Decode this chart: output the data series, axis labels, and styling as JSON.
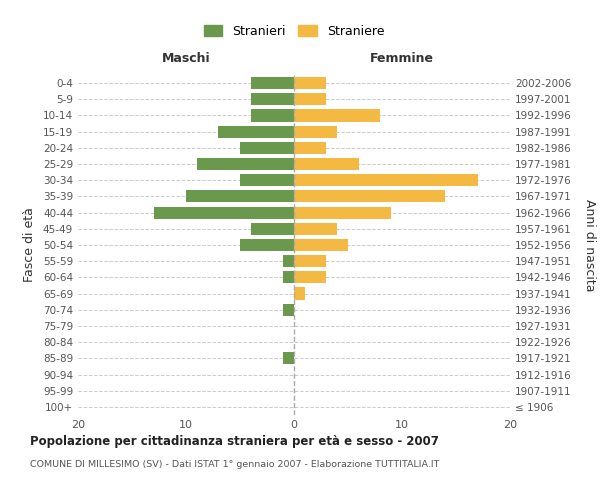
{
  "age_groups": [
    "100+",
    "95-99",
    "90-94",
    "85-89",
    "80-84",
    "75-79",
    "70-74",
    "65-69",
    "60-64",
    "55-59",
    "50-54",
    "45-49",
    "40-44",
    "35-39",
    "30-34",
    "25-29",
    "20-24",
    "15-19",
    "10-14",
    "5-9",
    "0-4"
  ],
  "birth_years": [
    "≤ 1906",
    "1907-1911",
    "1912-1916",
    "1917-1921",
    "1922-1926",
    "1927-1931",
    "1932-1936",
    "1937-1941",
    "1942-1946",
    "1947-1951",
    "1952-1956",
    "1957-1961",
    "1962-1966",
    "1967-1971",
    "1972-1976",
    "1977-1981",
    "1982-1986",
    "1987-1991",
    "1992-1996",
    "1997-2001",
    "2002-2006"
  ],
  "males": [
    0,
    0,
    0,
    1,
    0,
    0,
    1,
    0,
    1,
    1,
    5,
    4,
    13,
    10,
    5,
    9,
    5,
    7,
    4,
    4,
    4
  ],
  "females": [
    0,
    0,
    0,
    0,
    0,
    0,
    0,
    1,
    3,
    3,
    5,
    4,
    9,
    14,
    17,
    6,
    3,
    4,
    8,
    3,
    3
  ],
  "male_color": "#6a994e",
  "female_color": "#f4b942",
  "title_main": "Popolazione per cittadinanza straniera per età e sesso - 2007",
  "title_sub": "COMUNE DI MILLESIMO (SV) - Dati ISTAT 1° gennaio 2007 - Elaborazione TUTTITALIA.IT",
  "left_label": "Maschi",
  "right_label": "Femmine",
  "ylabel_left": "Fasce di età",
  "ylabel_right": "Anni di nascita",
  "legend_males": "Stranieri",
  "legend_females": "Straniere",
  "xlim": 20,
  "background_color": "#ffffff",
  "grid_color": "#cccccc",
  "bar_height": 0.75
}
